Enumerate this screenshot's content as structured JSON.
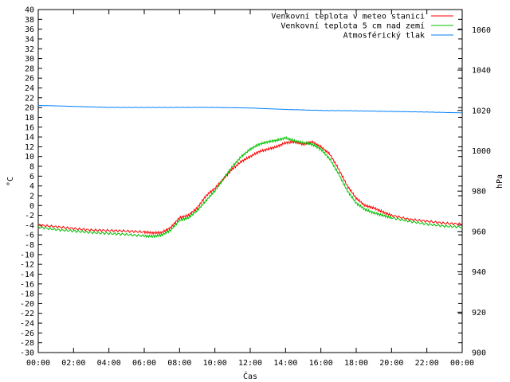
{
  "chart_data": {
    "type": "line",
    "title": "",
    "xlabel": "Čas",
    "ylabel_left": "°C",
    "ylabel_right": "hPa",
    "xlim": [
      0,
      24
    ],
    "x_ticks": [
      "00:00",
      "02:00",
      "04:00",
      "06:00",
      "08:00",
      "10:00",
      "12:00",
      "14:00",
      "16:00",
      "18:00",
      "20:00",
      "22:00",
      "00:00"
    ],
    "ylim_left": [
      -30,
      40
    ],
    "y_ticks_left": [
      40,
      38,
      36,
      34,
      32,
      30,
      28,
      26,
      24,
      22,
      20,
      18,
      16,
      14,
      12,
      10,
      8,
      6,
      4,
      2,
      0,
      -2,
      -4,
      -6,
      -8,
      -10,
      -12,
      -14,
      -16,
      -18,
      -20,
      -22,
      -24,
      -26,
      -28,
      -30
    ],
    "ylim_right": [
      900,
      1070
    ],
    "y_ticks_right": [
      1060,
      1040,
      1020,
      1000,
      980,
      960,
      940,
      920,
      900
    ],
    "grid": false,
    "legend_position": "top-right",
    "colors": {
      "series_0": "#ff0000",
      "series_1": "#00c000",
      "series_2": "#0080ff"
    },
    "series": [
      {
        "name": "Venkovní teplota v meteo stanici",
        "axis": "left",
        "x": [
          0,
          1,
          2,
          3,
          4,
          5,
          6,
          6.5,
          7,
          7.5,
          8,
          8.5,
          9,
          9.5,
          10,
          10.5,
          11,
          11.5,
          12,
          12.5,
          13,
          13.5,
          14,
          14.5,
          15,
          15.5,
          16,
          16.5,
          17,
          17.5,
          18,
          18.5,
          19,
          19.5,
          20,
          21,
          22,
          23,
          24
        ],
        "values": [
          -4,
          -4.3,
          -4.7,
          -5,
          -5.1,
          -5.2,
          -5.4,
          -5.6,
          -5.5,
          -4.5,
          -2.5,
          -2,
          -0.5,
          2,
          3.5,
          5.5,
          7.5,
          9,
          10,
          11,
          11.5,
          12,
          12.8,
          13,
          12.5,
          13,
          12,
          10.5,
          7.5,
          4,
          1.5,
          0,
          -0.5,
          -1.3,
          -2,
          -2.8,
          -3.2,
          -3.6,
          -3.8
        ]
      },
      {
        "name": "Venkovní teplota 5 cm nad zemí",
        "axis": "left",
        "x": [
          0,
          1,
          2,
          3,
          4,
          5,
          6,
          6.5,
          7,
          7.5,
          8,
          8.5,
          9,
          9.5,
          10,
          10.5,
          11,
          11.5,
          12,
          12.5,
          13,
          13.5,
          14,
          14.5,
          15,
          15.5,
          16,
          16.5,
          17,
          17.5,
          18,
          18.5,
          19,
          19.5,
          20,
          21,
          22,
          23,
          24
        ],
        "values": [
          -4.4,
          -4.9,
          -5.2,
          -5.5,
          -5.7,
          -5.9,
          -6.2,
          -6.3,
          -6,
          -5,
          -3,
          -2.5,
          -1,
          1,
          3,
          5.5,
          8,
          10,
          11.5,
          12.5,
          13,
          13.3,
          13.8,
          13.2,
          12.8,
          12.5,
          11.5,
          9.5,
          6.5,
          3,
          0.5,
          -0.8,
          -1.5,
          -2,
          -2.5,
          -3.2,
          -3.8,
          -4.2,
          -4.4
        ]
      },
      {
        "name": "Atmosférický tlak",
        "axis": "right",
        "x": [
          0,
          2,
          4,
          6,
          8,
          10,
          12,
          14,
          16,
          18,
          20,
          22,
          24
        ],
        "values": [
          1022.5,
          1022,
          1021.5,
          1021.5,
          1021.5,
          1021.5,
          1021.2,
          1020.5,
          1020,
          1019.8,
          1019.5,
          1019.2,
          1018.8
        ]
      }
    ]
  }
}
